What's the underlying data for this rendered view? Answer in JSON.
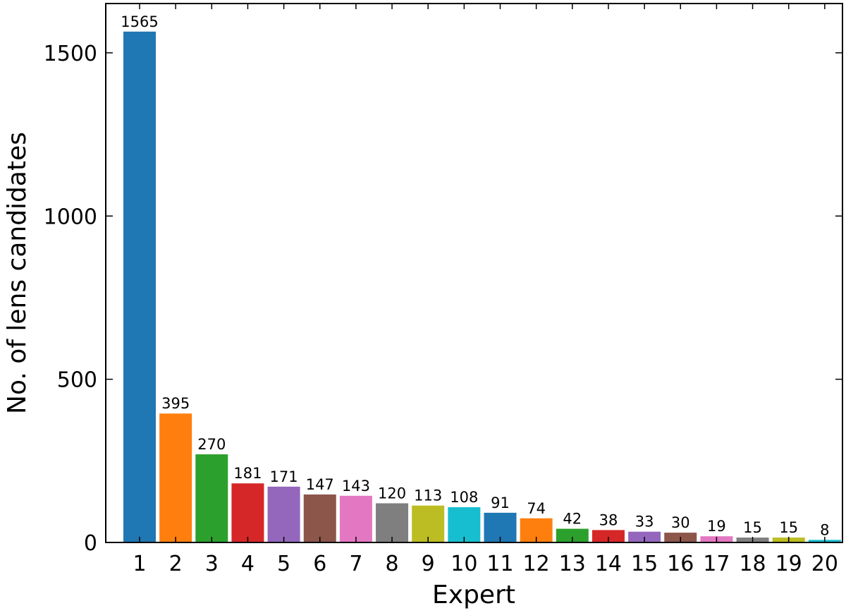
{
  "chart_data": {
    "type": "bar",
    "x_label": "Expert",
    "y_label": "No. of lens candidates",
    "categories": [
      "1",
      "2",
      "3",
      "4",
      "5",
      "6",
      "7",
      "8",
      "9",
      "10",
      "11",
      "12",
      "13",
      "14",
      "15",
      "16",
      "17",
      "18",
      "19",
      "20"
    ],
    "values": [
      1565,
      395,
      270,
      181,
      171,
      147,
      143,
      120,
      113,
      108,
      91,
      74,
      42,
      38,
      33,
      30,
      19,
      15,
      15,
      8
    ],
    "colors": [
      "#1f77b4",
      "#ff7f0e",
      "#2ca02c",
      "#d62728",
      "#9467bd",
      "#8c564b",
      "#e377c2",
      "#7f7f7f",
      "#bcbd22",
      "#17becf",
      "#1f77b4",
      "#ff7f0e",
      "#2ca02c",
      "#d62728",
      "#9467bd",
      "#8c564b",
      "#e377c2",
      "#7f7f7f",
      "#bcbd22",
      "#17becf"
    ],
    "ylim": [
      0,
      1651
    ],
    "yticks": [
      0,
      500,
      1000,
      1500
    ],
    "grid": false
  }
}
